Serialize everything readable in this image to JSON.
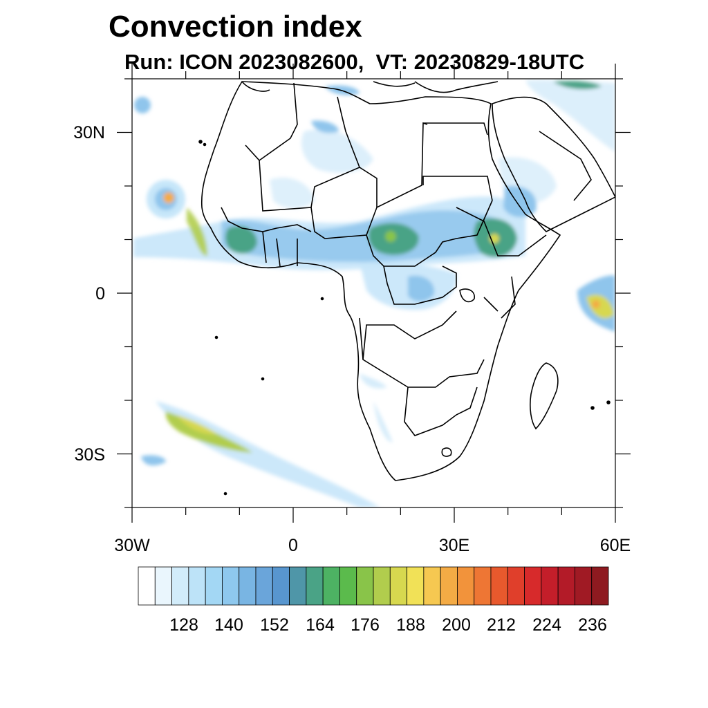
{
  "title": "Convection index",
  "subtitle": "Run: ICON 2023082600,  VT: 20230829-18UTC",
  "axes": {
    "lat_labels": [
      "30N",
      "0",
      "30S"
    ],
    "lon_labels": [
      "30W",
      "0",
      "30E",
      "60E"
    ],
    "lat_range": [
      -40,
      40
    ],
    "lon_range": [
      -30,
      60
    ]
  },
  "colorbar": {
    "labels": [
      "128",
      "140",
      "152",
      "164",
      "176",
      "188",
      "200",
      "212",
      "224",
      "236"
    ],
    "colors": [
      "#ffffff",
      "#eaf6fd",
      "#d2ecfa",
      "#bde3f8",
      "#a3d7f4",
      "#8ec8ee",
      "#79b5e3",
      "#6aa5da",
      "#5896cf",
      "#4f96a8",
      "#4aa386",
      "#4db263",
      "#5bbb4c",
      "#89c449",
      "#b1cd4d",
      "#d7d84f",
      "#f1e157",
      "#f6c851",
      "#f4ab45",
      "#f2933b",
      "#ee7634",
      "#e8592d",
      "#e03f2b",
      "#d72a2b",
      "#c41e2a",
      "#b31b28",
      "#a01a24",
      "#8e1a20"
    ]
  },
  "colors": {
    "coastline": "#000000",
    "frame": "#000000"
  }
}
